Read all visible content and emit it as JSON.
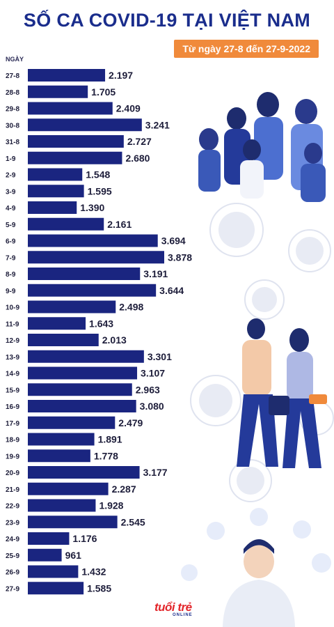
{
  "title": "SỐ CA COVID-19 TẠI VIỆT NAM",
  "subtitle": "Từ ngày 27-8 đến 27-9-2022",
  "logo": "tuổi trẻ",
  "logo_sub": "ONLINE",
  "colors": {
    "bar": "#1a2580",
    "title": "#1a2d8c",
    "badge": "#f08a3b"
  },
  "chart_data": {
    "type": "bar",
    "orientation": "horizontal",
    "ylabel": "NGÀY",
    "categories": [
      "27-8",
      "28-8",
      "29-8",
      "30-8",
      "31-8",
      "1-9",
      "2-9",
      "3-9",
      "4-9",
      "5-9",
      "6-9",
      "7-9",
      "8-9",
      "9-9",
      "10-9",
      "11-9",
      "12-9",
      "13-9",
      "14-9",
      "15-9",
      "16-9",
      "17-9",
      "18-9",
      "19-9",
      "20-9",
      "21-9",
      "22-9",
      "23-9",
      "24-9",
      "25-9",
      "26-9",
      "27-9"
    ],
    "values": [
      2197,
      1705,
      2409,
      3241,
      2727,
      2680,
      1548,
      1595,
      1390,
      2161,
      3694,
      3878,
      3191,
      3644,
      2498,
      1643,
      2013,
      3301,
      3107,
      2963,
      3080,
      2479,
      1891,
      1778,
      3177,
      2287,
      1928,
      2545,
      1176,
      961,
      1432,
      1585
    ],
    "value_labels": [
      "2.197",
      "1.705",
      "2.409",
      "3.241",
      "2.727",
      "2.680",
      "1.548",
      "1.595",
      "1.390",
      "2.161",
      "3.694",
      "3.878",
      "3.191",
      "3.644",
      "2.498",
      "1.643",
      "2.013",
      "3.301",
      "3.107",
      "2.963",
      "3.080",
      "2.479",
      "1.891",
      "1.778",
      "3.177",
      "2.287",
      "1.928",
      "2.545",
      "1.176",
      "961",
      "1.432",
      "1.585"
    ],
    "xlim": [
      0,
      3878
    ],
    "grid": false,
    "legend": "none"
  }
}
